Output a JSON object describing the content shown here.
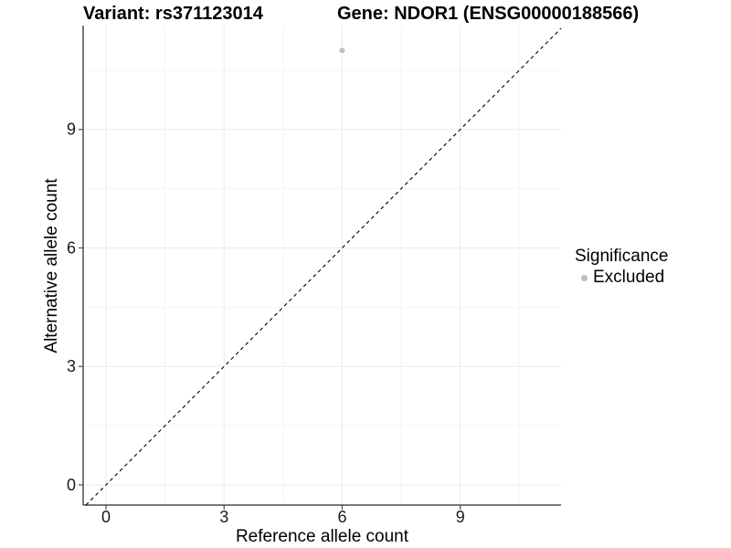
{
  "header": {
    "variant_title": "Variant: rs371123014",
    "gene_title": "Gene: NDOR1 (ENSG00000188566)"
  },
  "chart_data": {
    "type": "scatter",
    "title": "Variant: rs371123014 — Gene: NDOR1 (ENSG00000188566)",
    "xlabel": "Reference allele count",
    "ylabel": "Alternative allele count",
    "xlim": [
      -0.58,
      11.56
    ],
    "ylim": [
      -0.51,
      11.63
    ],
    "x_ticks": [
      0,
      3,
      6,
      9
    ],
    "y_ticks": [
      0,
      3,
      6,
      9
    ],
    "x_minor_ticks": [
      1.5,
      4.5,
      7.5,
      10.5
    ],
    "y_minor_ticks": [
      1.5,
      4.5,
      7.5,
      10.5
    ],
    "grid": true,
    "legend_position": "right",
    "series": [
      {
        "name": "Excluded",
        "points": [
          {
            "x": 6,
            "y": 11
          }
        ],
        "color": "#bebebe"
      }
    ],
    "reference_line": {
      "kind": "identity",
      "slope": 1,
      "intercept": 0,
      "style": "dashed",
      "color": "#000000"
    },
    "legend": {
      "title": "Significance",
      "entries": [
        {
          "label": "Excluded",
          "color": "#bebebe",
          "marker": "circle"
        }
      ]
    }
  },
  "colors": {
    "background": "#ffffff",
    "point": "#bebebe",
    "axis_line": "#4d4d4d",
    "tick_text": "#1a1a1a",
    "grid_major": "#ebebeb",
    "grid_minor": "#f5f5f5",
    "dashed_line": "#000000"
  }
}
